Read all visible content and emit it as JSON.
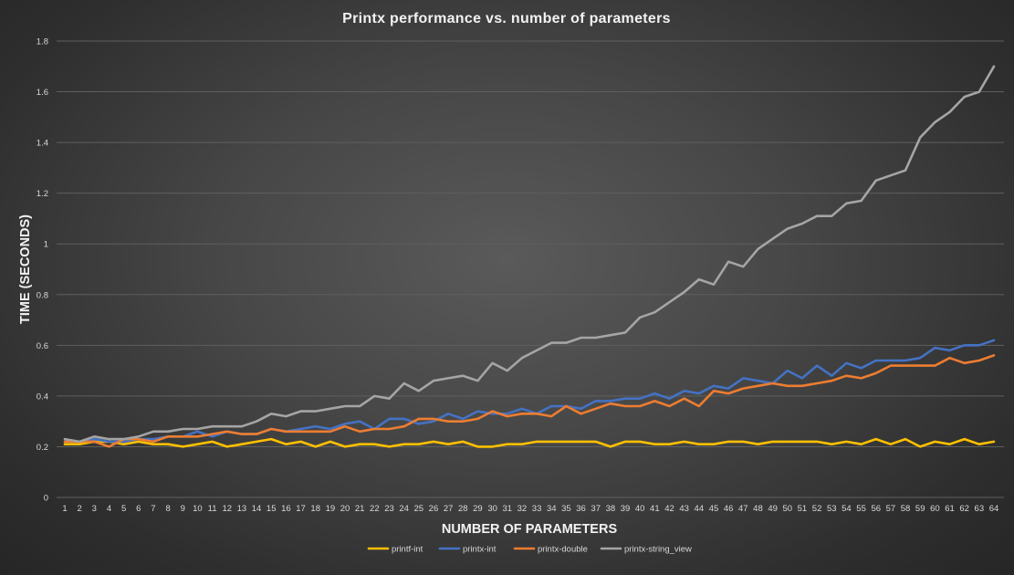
{
  "chart_data": {
    "type": "line",
    "title": "Printx performance vs. number of parameters",
    "xlabel": "NUMBER OF PARAMETERS",
    "ylabel": "TIME (SECONDS)",
    "ylim": [
      0,
      1.8
    ],
    "y_ticks": [
      "0",
      "0.2",
      "0.4",
      "0.6",
      "0.8",
      "1",
      "1.2",
      "1.4",
      "1.6",
      "1.8"
    ],
    "grid": true,
    "legend_position": "bottom",
    "x": [
      1,
      2,
      3,
      4,
      5,
      6,
      7,
      8,
      9,
      10,
      11,
      12,
      13,
      14,
      15,
      16,
      17,
      18,
      19,
      20,
      21,
      22,
      23,
      24,
      25,
      26,
      27,
      28,
      29,
      30,
      31,
      32,
      33,
      34,
      35,
      36,
      37,
      38,
      39,
      40,
      41,
      42,
      43,
      44,
      45,
      46,
      47,
      48,
      49,
      50,
      51,
      52,
      53,
      54,
      55,
      56,
      57,
      58,
      59,
      60,
      61,
      62,
      63,
      64
    ],
    "series": [
      {
        "name": "printf-int",
        "color": "#ffc000",
        "values": [
          0.21,
          0.21,
          0.22,
          0.22,
          0.21,
          0.22,
          0.21,
          0.21,
          0.2,
          0.21,
          0.22,
          0.2,
          0.21,
          0.22,
          0.23,
          0.21,
          0.22,
          0.2,
          0.22,
          0.2,
          0.21,
          0.21,
          0.2,
          0.21,
          0.21,
          0.22,
          0.21,
          0.22,
          0.2,
          0.2,
          0.21,
          0.21,
          0.22,
          0.22,
          0.22,
          0.22,
          0.22,
          0.2,
          0.22,
          0.22,
          0.21,
          0.21,
          0.22,
          0.21,
          0.21,
          0.22,
          0.22,
          0.21,
          0.22,
          0.22,
          0.22,
          0.22,
          0.21,
          0.22,
          0.21,
          0.23,
          0.21,
          0.23,
          0.2,
          0.22,
          0.21,
          0.23,
          0.21,
          0.22
        ]
      },
      {
        "name": "printx-int",
        "color": "#4472c4",
        "values": [
          0.22,
          0.22,
          0.23,
          0.22,
          0.22,
          0.23,
          0.23,
          0.24,
          0.24,
          0.26,
          0.24,
          0.26,
          0.25,
          0.25,
          0.27,
          0.26,
          0.27,
          0.28,
          0.27,
          0.29,
          0.3,
          0.27,
          0.31,
          0.31,
          0.29,
          0.3,
          0.33,
          0.31,
          0.34,
          0.33,
          0.33,
          0.35,
          0.33,
          0.36,
          0.36,
          0.35,
          0.38,
          0.38,
          0.39,
          0.39,
          0.41,
          0.39,
          0.42,
          0.41,
          0.44,
          0.43,
          0.47,
          0.46,
          0.45,
          0.5,
          0.47,
          0.52,
          0.48,
          0.53,
          0.51,
          0.54,
          0.54,
          0.54,
          0.55,
          0.59,
          0.58,
          0.6,
          0.6,
          0.62
        ]
      },
      {
        "name": "printx-double",
        "color": "#ed7d31",
        "values": [
          0.22,
          0.22,
          0.22,
          0.2,
          0.23,
          0.23,
          0.22,
          0.24,
          0.24,
          0.24,
          0.25,
          0.26,
          0.25,
          0.25,
          0.27,
          0.26,
          0.26,
          0.26,
          0.26,
          0.28,
          0.26,
          0.27,
          0.27,
          0.28,
          0.31,
          0.31,
          0.3,
          0.3,
          0.31,
          0.34,
          0.32,
          0.33,
          0.33,
          0.32,
          0.36,
          0.33,
          0.35,
          0.37,
          0.36,
          0.36,
          0.38,
          0.36,
          0.39,
          0.36,
          0.42,
          0.41,
          0.43,
          0.44,
          0.45,
          0.44,
          0.44,
          0.45,
          0.46,
          0.48,
          0.47,
          0.49,
          0.52,
          0.52,
          0.52,
          0.52,
          0.55,
          0.53,
          0.54,
          0.56
        ]
      },
      {
        "name": "printx-string_view",
        "color": "#a5a5a5",
        "values": [
          0.23,
          0.22,
          0.24,
          0.23,
          0.23,
          0.24,
          0.26,
          0.26,
          0.27,
          0.27,
          0.28,
          0.28,
          0.28,
          0.3,
          0.33,
          0.32,
          0.34,
          0.34,
          0.35,
          0.36,
          0.36,
          0.4,
          0.39,
          0.45,
          0.42,
          0.46,
          0.47,
          0.48,
          0.46,
          0.53,
          0.5,
          0.55,
          0.58,
          0.61,
          0.61,
          0.63,
          0.63,
          0.64,
          0.65,
          0.71,
          0.73,
          0.77,
          0.81,
          0.86,
          0.84,
          0.93,
          0.91,
          0.98,
          1.02,
          1.06,
          1.08,
          1.11,
          1.11,
          1.16,
          1.17,
          1.25,
          1.27,
          1.29,
          1.42,
          1.48,
          1.52,
          1.58,
          1.6,
          1.7
        ]
      }
    ]
  }
}
